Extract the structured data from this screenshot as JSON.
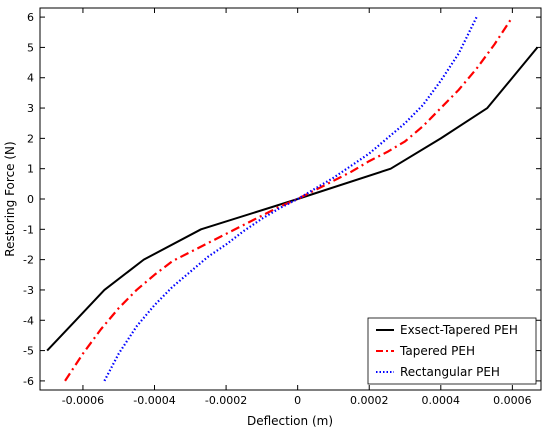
{
  "chart_data": {
    "type": "line",
    "xlabel": "Deflection (m)",
    "ylabel": "Restoring Force (N)",
    "xlim": [
      -0.00072,
      0.00068
    ],
    "ylim": [
      -6.3,
      6.3
    ],
    "x_ticks": [
      -0.0006,
      -0.0004,
      -0.0002,
      0,
      0.0002,
      0.0004,
      0.0006
    ],
    "x_tick_labels": [
      "-0.0006",
      "-0.0004",
      "-0.0002",
      "0",
      "0.0002",
      "0.0004",
      "0.0006"
    ],
    "y_ticks": [
      -6,
      -5,
      -4,
      -3,
      -2,
      -1,
      0,
      1,
      2,
      3,
      4,
      5,
      6
    ],
    "y_tick_labels": [
      "-6",
      "-5",
      "-4",
      "-3",
      "-2",
      "-1",
      "0",
      "1",
      "2",
      "3",
      "4",
      "5",
      "6"
    ],
    "grid": false,
    "legend_position": "bottom-right",
    "series": [
      {
        "name": "Exsect-Tapered PEH",
        "color": "#000000",
        "style": "solid",
        "x": [
          -0.0007,
          -0.00062,
          -0.00054,
          -0.00043,
          -0.00027,
          0,
          0.00026,
          0.0004,
          0.00053,
          0.0006,
          0.00067
        ],
        "y": [
          -5,
          -4,
          -3,
          -2,
          -1,
          0,
          1,
          2,
          3,
          4,
          5
        ]
      },
      {
        "name": "Tapered PEH",
        "color": "#ff0000",
        "style": "dashdot",
        "x": [
          -0.00065,
          -0.0006,
          -0.00055,
          -0.0005,
          -0.00045,
          -0.0004,
          -0.00035,
          -0.0003,
          -0.00025,
          -0.0002,
          -0.00015,
          -0.0001,
          -5e-05,
          0,
          5e-05,
          0.0001,
          0.00015,
          0.0002,
          0.00025,
          0.0003,
          0.00035,
          0.0004,
          0.00045,
          0.0005,
          0.00055,
          0.0006
        ],
        "y": [
          -6,
          -5.1,
          -4.3,
          -3.6,
          -3.0,
          -2.5,
          -2.05,
          -1.75,
          -1.45,
          -1.15,
          -0.85,
          -0.55,
          -0.25,
          0,
          0.3,
          0.6,
          0.9,
          1.25,
          1.55,
          1.9,
          2.4,
          3.0,
          3.6,
          4.3,
          5.1,
          6
        ]
      },
      {
        "name": "Rectangular PEH",
        "color": "#0000ff",
        "style": "dotted",
        "x": [
          -0.00054,
          -0.0005,
          -0.00045,
          -0.0004,
          -0.00035,
          -0.0003,
          -0.00025,
          -0.0002,
          -0.00015,
          -0.0001,
          -5e-05,
          0,
          5e-05,
          0.0001,
          0.00015,
          0.0002,
          0.00025,
          0.0003,
          0.00035,
          0.0004,
          0.00045,
          0.0005
        ],
        "y": [
          -6,
          -5.1,
          -4.2,
          -3.5,
          -2.9,
          -2.4,
          -1.9,
          -1.5,
          -1.05,
          -0.65,
          -0.3,
          0,
          0.35,
          0.7,
          1.1,
          1.5,
          2.0,
          2.5,
          3.1,
          3.9,
          4.8,
          6
        ]
      }
    ]
  }
}
